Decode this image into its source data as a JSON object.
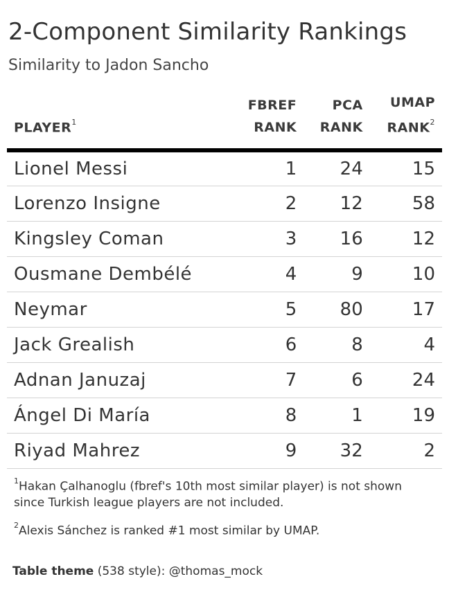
{
  "title": "2-Component Similarity Rankings",
  "subtitle": "Similarity to Jadon Sancho",
  "headers": {
    "player": "PLAYER",
    "player_sup": "1",
    "fbref_line1": "FBREF",
    "fbref_line2": "RANK",
    "pca_line1": "PCA",
    "pca_line2": "RANK",
    "umap_line1": "UMAP",
    "umap_line2": "RANK",
    "umap_sup": "2"
  },
  "chart_data": {
    "type": "table",
    "columns": [
      "PLAYER",
      "FBREF RANK",
      "PCA RANK",
      "UMAP RANK"
    ],
    "rows": [
      {
        "player": "Lionel Messi",
        "fbref": "1",
        "pca": "24",
        "umap": "15"
      },
      {
        "player": "Lorenzo Insigne",
        "fbref": "2",
        "pca": "12",
        "umap": "58"
      },
      {
        "player": "Kingsley Coman",
        "fbref": "3",
        "pca": "16",
        "umap": "12"
      },
      {
        "player": "Ousmane Dembélé",
        "fbref": "4",
        "pca": "9",
        "umap": "10"
      },
      {
        "player": "Neymar",
        "fbref": "5",
        "pca": "80",
        "umap": "17"
      },
      {
        "player": "Jack Grealish",
        "fbref": "6",
        "pca": "8",
        "umap": "4"
      },
      {
        "player": "Adnan Januzaj",
        "fbref": "7",
        "pca": "6",
        "umap": "24"
      },
      {
        "player": "Ángel Di María",
        "fbref": "8",
        "pca": "1",
        "umap": "19"
      },
      {
        "player": "Riyad Mahrez",
        "fbref": "9",
        "pca": "32",
        "umap": "2"
      }
    ]
  },
  "footnotes": {
    "fn1_mark": "1",
    "fn1_text": "Hakan Çalhanoglu (fbref's 10th most similar player) is not shown since Turkish league players are not included.",
    "fn2_mark": "2",
    "fn2_text": "Alexis Sánchez is ranked #1 most similar by UMAP."
  },
  "credit": {
    "bold": "Table theme",
    "rest": " (538 style): @thomas_mock"
  }
}
